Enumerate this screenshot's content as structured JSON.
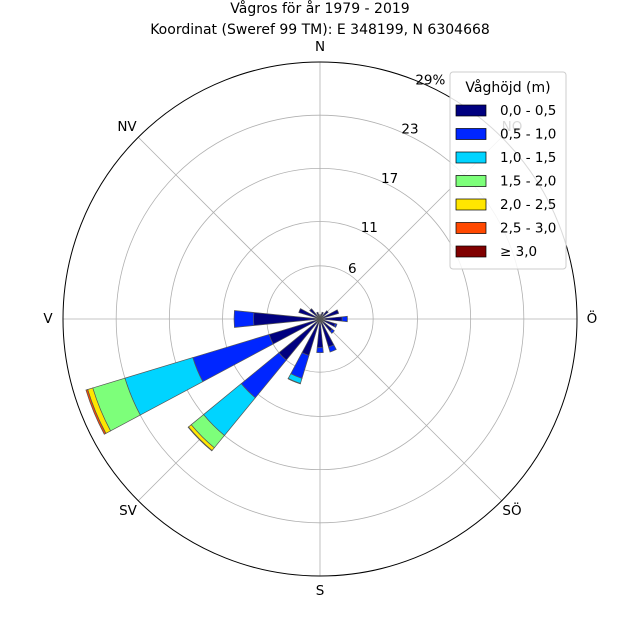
{
  "chart_data": {
    "type": "windrose",
    "title": "Vågros för år 1979 - 2019",
    "subtitle": "Koordinat (Sweref 99 TM): E 348199, N 6304668",
    "directions": [
      "N",
      "NO",
      "O",
      "SO",
      "S",
      "SV",
      "V",
      "NV"
    ],
    "direction_labels": [
      "N",
      "Ö",
      "S",
      "V",
      "NV",
      "SV",
      "SÖ",
      "NO"
    ],
    "radial_ticks": [
      "6",
      "11",
      "17",
      "23",
      "29%"
    ],
    "rmax_percent": 29,
    "legend": {
      "title": "Våghöjd (m)",
      "position": "top-right",
      "bins": [
        {
          "label": "0,0 - 0,5",
          "color": "#000080"
        },
        {
          "label": "0,5 - 1,0",
          "color": "#0026ff"
        },
        {
          "label": "1,0 - 1,5",
          "color": "#00d4ff"
        },
        {
          "label": "1,5 - 2,0",
          "color": "#7dff7a"
        },
        {
          "label": "2,0 - 2,5",
          "color": "#ffe600"
        },
        {
          "label": "2,5 - 3,0",
          "color": "#ff4800"
        },
        {
          "label": "≥ 3,0",
          "color": "#800000"
        }
      ]
    },
    "sector_width_deg": 11.25,
    "sectors": [
      {
        "dir": "N",
        "angle": 0,
        "values": [
          0.5,
          0,
          0,
          0,
          0,
          0,
          0
        ]
      },
      {
        "dir": "NNÖ",
        "angle": 22.5,
        "values": [
          0.8,
          0,
          0,
          0,
          0,
          0,
          0
        ]
      },
      {
        "dir": "NÖ",
        "angle": 45,
        "values": [
          1.2,
          0,
          0,
          0,
          0,
          0,
          0
        ]
      },
      {
        "dir": "ÖNÖ",
        "angle": 67.5,
        "values": [
          2.2,
          0,
          0,
          0,
          0,
          0,
          0
        ]
      },
      {
        "dir": "Ö",
        "angle": 90,
        "values": [
          2.5,
          0.6,
          0,
          0,
          0,
          0,
          0
        ]
      },
      {
        "dir": "ÖSÖ",
        "angle": 112.5,
        "values": [
          1.8,
          0.2,
          0,
          0,
          0,
          0,
          0
        ]
      },
      {
        "dir": "SÖ",
        "angle": 135,
        "values": [
          1.8,
          0.3,
          0,
          0,
          0,
          0,
          0
        ]
      },
      {
        "dir": "SSÖ",
        "angle": 157.5,
        "values": [
          3.3,
          0.6,
          0,
          0,
          0,
          0,
          0
        ]
      },
      {
        "dir": "S",
        "angle": 180,
        "values": [
          3.2,
          0.6,
          0,
          0,
          0,
          0,
          0
        ]
      },
      {
        "dir": "SSV",
        "angle": 202.5,
        "values": [
          4.3,
          2.7,
          0.6,
          0.05,
          0,
          0,
          0
        ]
      },
      {
        "dir": "SV",
        "angle": 225,
        "values": [
          6.0,
          5.5,
          5.5,
          1.8,
          0.4,
          0.05,
          0
        ]
      },
      {
        "dir": "VSV",
        "angle": 247.5,
        "values": [
          6.0,
          9.0,
          8.0,
          3.8,
          0.6,
          0.2,
          0
        ]
      },
      {
        "dir": "V",
        "angle": 270,
        "values": [
          7.5,
          2.2,
          0,
          0,
          0,
          0,
          0
        ]
      },
      {
        "dir": "VNV",
        "angle": 292.5,
        "values": [
          2.5,
          0,
          0,
          0,
          0,
          0,
          0
        ]
      },
      {
        "dir": "NV",
        "angle": 315,
        "values": [
          1.5,
          0,
          0,
          0,
          0,
          0,
          0
        ]
      },
      {
        "dir": "NNV",
        "angle": 337.5,
        "values": [
          0.8,
          0,
          0,
          0,
          0,
          0,
          0
        ]
      }
    ],
    "grid": true
  }
}
